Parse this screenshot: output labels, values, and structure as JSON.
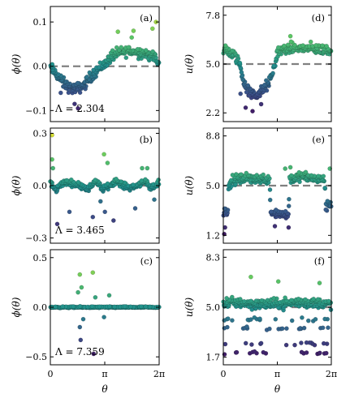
{
  "chart_data": [
    {
      "id": "a",
      "type": "scatter",
      "panel_label": "(a)",
      "ylabel": "ϕ(θ)",
      "xlabel": "",
      "xlim": [
        0,
        6.2832
      ],
      "ylim": [
        -0.125,
        0.135
      ],
      "yticks": [
        -0.1,
        0.0,
        0.1
      ],
      "ytick_labels": [
        "−0.1",
        "0.0",
        "0.1"
      ],
      "xtick_labels": [
        "",
        "",
        ""
      ],
      "reference_line": 0.0,
      "annotation": "Λ = 2.304",
      "profile": [
        [
          0,
          -0.003
        ],
        [
          0.4,
          -0.02
        ],
        [
          0.8,
          -0.04
        ],
        [
          1.2,
          -0.05
        ],
        [
          1.6,
          -0.05
        ],
        [
          2.0,
          -0.04
        ],
        [
          2.4,
          -0.02
        ],
        [
          2.8,
          -0.005
        ],
        [
          3.14,
          0.005
        ],
        [
          3.6,
          0.025
        ],
        [
          4.0,
          0.03
        ],
        [
          4.5,
          0.035
        ],
        [
          5.0,
          0.032
        ],
        [
          5.5,
          0.03
        ],
        [
          6.0,
          0.02
        ],
        [
          6.2832,
          0.003
        ]
      ],
      "spread": 0.018,
      "outliers": [
        [
          3.9,
          0.078
        ],
        [
          4.8,
          0.08
        ],
        [
          5.9,
          0.085
        ],
        [
          6.1,
          0.1
        ],
        [
          1.4,
          -0.085
        ],
        [
          1.6,
          -0.095
        ],
        [
          0.6,
          -0.06
        ],
        [
          4.7,
          0.065
        ]
      ]
    },
    {
      "id": "b",
      "type": "scatter",
      "panel_label": "(b)",
      "ylabel": "ϕ(θ)",
      "xlabel": "",
      "xlim": [
        0,
        6.2832
      ],
      "ylim": [
        -0.33,
        0.33
      ],
      "yticks": [
        -0.3,
        0.0,
        0.3
      ],
      "ytick_labels": [
        "−0.3",
        "0.0",
        "0.3"
      ],
      "xtick_labels": [
        "",
        "",
        ""
      ],
      "reference_line": 0.0,
      "annotation": "Λ = 3.465",
      "profile": [
        [
          0,
          0.02
        ],
        [
          0.3,
          -0.03
        ],
        [
          0.6,
          0.01
        ],
        [
          1.0,
          0.02
        ],
        [
          1.4,
          0.01
        ],
        [
          1.8,
          0.0
        ],
        [
          2.2,
          -0.02
        ],
        [
          2.6,
          0.03
        ],
        [
          3.0,
          -0.02
        ],
        [
          3.4,
          0.0
        ],
        [
          3.8,
          0.03
        ],
        [
          4.2,
          0.0
        ],
        [
          4.6,
          -0.01
        ],
        [
          5.0,
          0.0
        ],
        [
          5.4,
          0.03
        ],
        [
          5.8,
          -0.02
        ],
        [
          6.2832,
          0.02
        ]
      ],
      "spread": 0.025,
      "outliers": [
        [
          0.1,
          0.29
        ],
        [
          0.1,
          0.15
        ],
        [
          0.15,
          0.1
        ],
        [
          0.4,
          -0.22
        ],
        [
          2.45,
          -0.18
        ],
        [
          3.1,
          0.18
        ],
        [
          3.3,
          0.13
        ],
        [
          3.15,
          -0.15
        ],
        [
          3.65,
          -0.2
        ],
        [
          1.1,
          -0.15
        ],
        [
          5.3,
          0.1
        ],
        [
          5.6,
          0.1
        ],
        [
          4.9,
          -0.13
        ],
        [
          6.0,
          -0.08
        ],
        [
          2.9,
          -0.09
        ]
      ]
    },
    {
      "id": "c",
      "type": "scatter",
      "panel_label": "(c)",
      "ylabel": "ϕ(θ)",
      "xlabel": "θ",
      "xlim": [
        0,
        6.2832
      ],
      "ylim": [
        -0.58,
        0.58
      ],
      "yticks": [
        -0.5,
        0.0,
        0.5
      ],
      "ytick_labels": [
        "−0.5",
        "0.0",
        "0.5"
      ],
      "xtick_labels": [
        "0",
        "π",
        "2π"
      ],
      "reference_line": 0.0,
      "annotation": "Λ = 7.359",
      "profile": [
        [
          0,
          0.0
        ],
        [
          1.0,
          0.0
        ],
        [
          1.5,
          0.0
        ],
        [
          2.0,
          0.0
        ],
        [
          3.14,
          0.0
        ],
        [
          4.0,
          0.0
        ],
        [
          5.0,
          0.0
        ],
        [
          6.2832,
          0.0
        ]
      ],
      "spread": 0.01,
      "outliers": [
        [
          1.7,
          0.33
        ],
        [
          2.45,
          0.35
        ],
        [
          1.8,
          0.2
        ],
        [
          1.7,
          -0.2
        ],
        [
          1.75,
          -0.33
        ],
        [
          2.5,
          -0.47
        ],
        [
          2.6,
          0.1
        ],
        [
          3.4,
          0.12
        ],
        [
          3.1,
          -0.1
        ],
        [
          1.6,
          0.15
        ],
        [
          1.9,
          -0.12
        ]
      ]
    },
    {
      "id": "d",
      "type": "scatter",
      "panel_label": "(d)",
      "ylabel": "u(θ)",
      "xlabel": "",
      "xlim": [
        0,
        6.2832
      ],
      "ylim": [
        1.7,
        8.3
      ],
      "yticks": [
        2.2,
        5.0,
        7.8
      ],
      "ytick_labels": [
        "2.2",
        "5.0",
        "7.8"
      ],
      "xtick_labels": [
        "",
        "",
        ""
      ],
      "reference_line": 5.0,
      "annotation": "",
      "profile": [
        [
          0,
          5.8
        ],
        [
          0.3,
          5.7
        ],
        [
          0.6,
          5.5
        ],
        [
          0.9,
          5.2
        ],
        [
          1.1,
          4.3
        ],
        [
          1.3,
          3.7
        ],
        [
          1.6,
          3.3
        ],
        [
          1.9,
          3.2
        ],
        [
          2.3,
          3.5
        ],
        [
          2.7,
          4.0
        ],
        [
          2.9,
          4.6
        ],
        [
          3.1,
          5.4
        ],
        [
          3.2,
          5.8
        ],
        [
          4.0,
          5.9
        ],
        [
          5.0,
          5.9
        ],
        [
          6.0,
          5.8
        ],
        [
          6.2832,
          5.8
        ]
      ],
      "spread": 0.45,
      "outliers": [
        [
          1.7,
          2.3
        ],
        [
          1.3,
          2.5
        ],
        [
          3.9,
          6.6
        ],
        [
          2.2,
          2.7
        ],
        [
          1.0,
          3.3
        ]
      ]
    },
    {
      "id": "e",
      "type": "scatter",
      "panel_label": "(e)",
      "ylabel": "u(θ)",
      "xlabel": "",
      "xlim": [
        0,
        6.2832
      ],
      "ylim": [
        0.6,
        9.4
      ],
      "yticks": [
        1.2,
        5.0,
        8.8
      ],
      "ytick_labels": [
        "1.2",
        "5.0",
        "8.8"
      ],
      "xtick_labels": [
        "",
        "",
        ""
      ],
      "reference_line": 5.0,
      "annotation": "",
      "profile": [
        [
          0,
          3.0
        ],
        [
          0.25,
          3.0
        ],
        [
          0.3,
          4.8
        ],
        [
          0.5,
          5.4
        ],
        [
          1.0,
          5.5
        ],
        [
          1.5,
          5.6
        ],
        [
          2.0,
          5.5
        ],
        [
          2.4,
          5.5
        ],
        [
          2.7,
          5.5
        ],
        [
          2.75,
          3.0
        ],
        [
          3.5,
          2.8
        ],
        [
          3.8,
          2.8
        ],
        [
          3.85,
          5.5
        ],
        [
          4.5,
          5.7
        ],
        [
          5.0,
          5.6
        ],
        [
          5.5,
          5.5
        ],
        [
          5.9,
          5.4
        ],
        [
          5.95,
          3.4
        ],
        [
          6.2832,
          3.6
        ]
      ],
      "spread": 0.55,
      "outliers": [
        [
          0.05,
          1.3
        ],
        [
          0.1,
          1.8
        ],
        [
          3.6,
          6.3
        ],
        [
          3.9,
          6.4
        ],
        [
          6.2,
          6.3
        ],
        [
          3.8,
          1.8
        ],
        [
          3.0,
          1.9
        ]
      ]
    },
    {
      "id": "f",
      "type": "scatter",
      "panel_label": "(f)",
      "ylabel": "u(θ)",
      "xlabel": "θ",
      "xlim": [
        0,
        6.2832
      ],
      "ylim": [
        1.2,
        8.8
      ],
      "yticks": [
        1.7,
        5.0,
        8.3
      ],
      "ytick_labels": [
        "1.7",
        "5.0",
        "8.3"
      ],
      "xtick_labels": [
        "0",
        "π",
        "2π"
      ],
      "reference_line": 5.0,
      "annotation": "",
      "profile": [
        [
          0,
          5.3
        ],
        [
          1.0,
          5.3
        ],
        [
          2.0,
          5.2
        ],
        [
          3.14,
          5.2
        ],
        [
          4.0,
          5.3
        ],
        [
          5.0,
          5.3
        ],
        [
          6.2832,
          5.2
        ]
      ],
      "spread": 0.5,
      "lower_bands": [
        2.0,
        2.6,
        3.6,
        4.2
      ],
      "outliers": [
        [
          1.6,
          7.0
        ],
        [
          3.2,
          6.7
        ],
        [
          5.6,
          6.6
        ]
      ]
    }
  ],
  "colormap": [
    "#440154",
    "#3b528b",
    "#21918c",
    "#5ec962",
    "#fde725"
  ]
}
